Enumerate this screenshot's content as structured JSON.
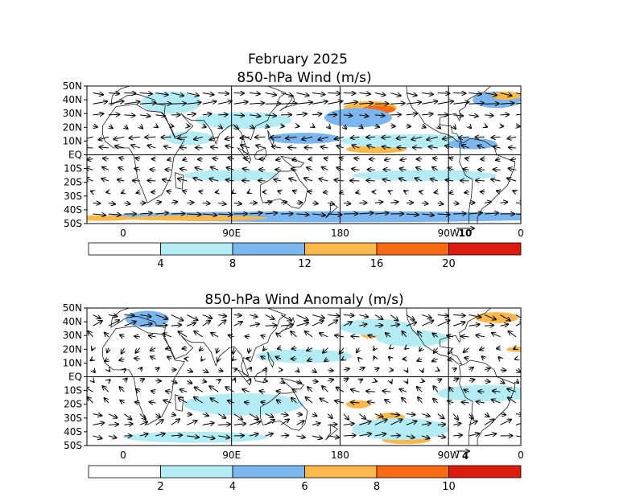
{
  "figure": {
    "month_title": "February 2025"
  },
  "panels": [
    {
      "title": "850-hPa Wind (m/s)",
      "lat_labels": [
        "50N",
        "40N",
        "30N",
        "20N",
        "10N",
        "EQ",
        "10S",
        "20S",
        "30S",
        "40S",
        "50S"
      ],
      "lon_labels": [
        "0",
        "90E",
        "180",
        "90W",
        "0"
      ],
      "reference_vector": "10",
      "colorbar": {
        "labels": [
          "4",
          "8",
          "12",
          "16",
          "20"
        ],
        "colors": [
          "#ffffff",
          "#b4ecf6",
          "#7bb6ee",
          "#fcb84a",
          "#f86a12",
          "#dc1c0c"
        ]
      },
      "speed_blobs": [
        {
          "lon": 205,
          "lat": 34,
          "rx": 22,
          "ry": 5,
          "level": 3
        },
        {
          "lon": 212,
          "lat": 33,
          "rx": 14,
          "ry": 3,
          "level": 4
        },
        {
          "lon": 195,
          "lat": 27,
          "rx": 28,
          "ry": 7,
          "level": 2
        },
        {
          "lon": 310,
          "lat": 40,
          "rx": 20,
          "ry": 6,
          "level": 2
        },
        {
          "lon": 318,
          "lat": 43,
          "rx": 12,
          "ry": 3,
          "level": 3
        },
        {
          "lon": 40,
          "lat": 38,
          "rx": 25,
          "ry": 8,
          "level": 1
        },
        {
          "lon": 100,
          "lat": 25,
          "rx": 40,
          "ry": 6,
          "level": 1
        },
        {
          "lon": 150,
          "lat": 12,
          "rx": 30,
          "ry": 4,
          "level": 2
        },
        {
          "lon": 210,
          "lat": 4,
          "rx": 25,
          "ry": 3,
          "level": 3
        },
        {
          "lon": 240,
          "lat": 10,
          "rx": 60,
          "ry": 5,
          "level": 1
        },
        {
          "lon": 290,
          "lat": 8,
          "rx": 20,
          "ry": 4,
          "level": 2
        },
        {
          "lon": 55,
          "lat": 12,
          "rx": 20,
          "ry": 5,
          "level": 1
        },
        {
          "lon": 90,
          "lat": -15,
          "rx": 40,
          "ry": 4,
          "level": 1
        },
        {
          "lon": 250,
          "lat": -15,
          "rx": 60,
          "ry": 4,
          "level": 1
        },
        {
          "lon": 180,
          "lat": -45,
          "rx": 200,
          "ry": 4,
          "level": 2
        },
        {
          "lon": 60,
          "lat": -46,
          "rx": 60,
          "ry": 2,
          "level": 3
        },
        {
          "lon": 340,
          "lat": -46,
          "rx": 30,
          "ry": 2,
          "level": 3
        }
      ],
      "wind_rows": [
        {
          "lat": 45,
          "u": 7,
          "v": -1
        },
        {
          "lat": 37,
          "u": 9,
          "v": 1
        },
        {
          "lat": 29,
          "u": 6,
          "v": 0
        },
        {
          "lat": 21,
          "u": 2,
          "v": -1
        },
        {
          "lat": 13,
          "u": -6,
          "v": -1
        },
        {
          "lat": 5,
          "u": -5,
          "v": 1
        },
        {
          "lat": -3,
          "u": -3,
          "v": 0
        },
        {
          "lat": -11,
          "u": -4,
          "v": 1
        },
        {
          "lat": -19,
          "u": -5,
          "v": 1
        },
        {
          "lat": -27,
          "u": -2,
          "v": 0
        },
        {
          "lat": -35,
          "u": 4,
          "v": 0
        },
        {
          "lat": -43,
          "u": 8,
          "v": 0
        }
      ]
    },
    {
      "title": "850-hPa Wind Anomaly (m/s)",
      "lat_labels": [
        "50N",
        "40N",
        "30N",
        "20N",
        "10N",
        "EQ",
        "10S",
        "20S",
        "30S",
        "40S",
        "50S"
      ],
      "lon_labels": [
        "0",
        "90E",
        "180",
        "90W",
        "0"
      ],
      "reference_vector": "4",
      "colorbar": {
        "labels": [
          "2",
          "4",
          "6",
          "8",
          "10"
        ],
        "colors": [
          "#ffffff",
          "#b4ecf6",
          "#7bb6ee",
          "#fcb84a",
          "#f86a12",
          "#dc1c0c"
        ]
      },
      "speed_blobs": [
        {
          "lon": 310,
          "lat": 43,
          "rx": 18,
          "ry": 4,
          "level": 3
        },
        {
          "lon": 205,
          "lat": 31,
          "rx": 8,
          "ry": 3,
          "level": 3
        },
        {
          "lon": 210,
          "lat": 36,
          "rx": 30,
          "ry": 6,
          "level": 1
        },
        {
          "lon": 20,
          "lat": 42,
          "rx": 18,
          "ry": 6,
          "level": 2
        },
        {
          "lon": 240,
          "lat": 28,
          "rx": 30,
          "ry": 6,
          "level": 1
        },
        {
          "lon": 195,
          "lat": -20,
          "rx": 10,
          "ry": 3,
          "level": 3
        },
        {
          "lon": 222,
          "lat": -30,
          "rx": 12,
          "ry": 4,
          "level": 3
        },
        {
          "lon": 235,
          "lat": -46,
          "rx": 20,
          "ry": 3,
          "level": 3
        },
        {
          "lon": 230,
          "lat": -38,
          "rx": 40,
          "ry": 8,
          "level": 1
        },
        {
          "lon": 100,
          "lat": -20,
          "rx": 50,
          "ry": 8,
          "level": 1
        },
        {
          "lon": 300,
          "lat": -12,
          "rx": 40,
          "ry": 6,
          "level": 1
        },
        {
          "lon": 60,
          "lat": -44,
          "rx": 60,
          "ry": 4,
          "level": 1
        },
        {
          "lon": 330,
          "lat": 20,
          "rx": 12,
          "ry": 2,
          "level": 3
        },
        {
          "lon": 150,
          "lat": 15,
          "rx": 40,
          "ry": 5,
          "level": 1
        }
      ],
      "wind_rows": [
        {
          "lat": 45,
          "u": 3,
          "v": -1
        },
        {
          "lat": 37,
          "u": 3,
          "v": 1
        },
        {
          "lat": 29,
          "u": -2,
          "v": 1
        },
        {
          "lat": 21,
          "u": -1,
          "v": -1
        },
        {
          "lat": 13,
          "u": -1,
          "v": 0
        },
        {
          "lat": 5,
          "u": 1,
          "v": 0
        },
        {
          "lat": -3,
          "u": 1,
          "v": 0
        },
        {
          "lat": -11,
          "u": -2,
          "v": 1
        },
        {
          "lat": -19,
          "u": -2,
          "v": 1
        },
        {
          "lat": -27,
          "u": 2,
          "v": -1
        },
        {
          "lat": -35,
          "u": 3,
          "v": 1
        },
        {
          "lat": -43,
          "u": 3,
          "v": 0
        }
      ]
    }
  ]
}
